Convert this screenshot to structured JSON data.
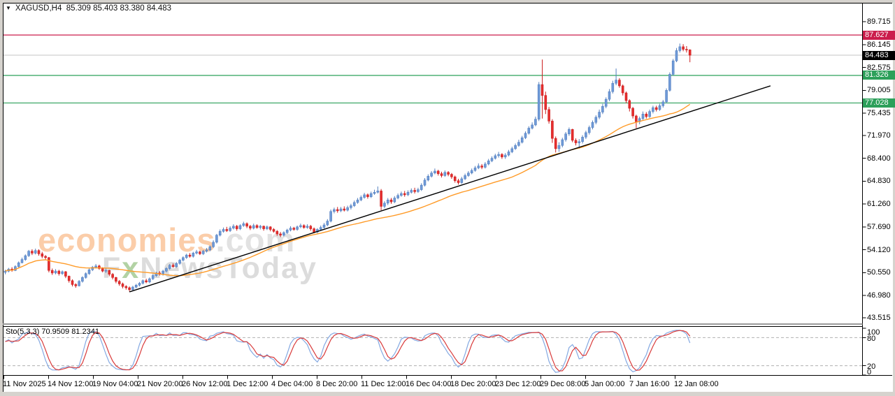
{
  "title": {
    "dropdown_icon": "▼",
    "symbol": "XAGUSD,H4",
    "ohlc_text": "85.309 85.403 83.380 84.483"
  },
  "watermark": {
    "brand": "economies",
    "brand_suffix": ".com",
    "sub_first": "F",
    "sub_x": "x",
    "sub_rest": "NewsToday"
  },
  "indicator_panel": {
    "label": "Sto(5,3,3)",
    "values": "70.9509 81.2341"
  },
  "colors": {
    "up_fill": "#6f9ad8",
    "up_stroke": "#5580bf",
    "down_fill": "#e62e2e",
    "down_stroke": "#cc1f1f",
    "ma": "#ff9b28",
    "trendline": "#000000",
    "resistance": "#cb1d4c",
    "support": "#2ca05a",
    "current_price_line": "#c4c4c4",
    "current_price_tag": "#000000",
    "sto_k": "#84a9e2",
    "sto_d": "#d93a3a",
    "sto_level_dash": "#b0b0b0",
    "frame": "#000000",
    "splitter": "#9b9b9b"
  },
  "chart_data": {
    "type": "candlestick",
    "symbol": "XAGUSD",
    "timeframe": "H4",
    "current_ohlc": {
      "open": 85.309,
      "high": 85.403,
      "low": 83.38,
      "close": 84.483
    },
    "ylim_visible": [
      42.3,
      90.7
    ],
    "y_ticks": [
      {
        "label": "89.715",
        "value": 89.715
      },
      {
        "label": "86.145",
        "value": 86.145
      },
      {
        "label": "82.575",
        "value": 82.575
      },
      {
        "label": "79.005",
        "value": 79.005
      },
      {
        "label": "75.435",
        "value": 75.435
      },
      {
        "label": "71.970",
        "value": 71.97
      },
      {
        "label": "68.400",
        "value": 68.4
      },
      {
        "label": "64.830",
        "value": 64.83
      },
      {
        "label": "61.260",
        "value": 61.26
      },
      {
        "label": "57.690",
        "value": 57.69
      },
      {
        "label": "54.120",
        "value": 54.12
      },
      {
        "label": "50.550",
        "value": 50.55
      },
      {
        "label": "46.980",
        "value": 46.98
      },
      {
        "label": "43.515",
        "value": 43.515
      }
    ],
    "x_labels": [
      "11 Nov 2025",
      "14 Nov 12:00",
      "19 Nov 04:00",
      "21 Nov 20:00",
      "26 Nov 12:00",
      "1 Dec 12:00",
      "4 Dec 04:00",
      "8 Dec 20:00",
      "11 Dec 12:00",
      "16 Dec 04:00",
      "18 Dec 20:00",
      "23 Dec 12:00",
      "29 Dec 08:00",
      "5 Jan 00:00",
      "7 Jan 16:00",
      "12 Jan 08:00"
    ],
    "hlines": [
      {
        "label": "87.627",
        "price": 87.627,
        "color": "#cb1d4c",
        "tag_bg": "#cb1d4c",
        "kind": "resistance"
      },
      {
        "label": "84.483",
        "price": 84.483,
        "color": "#c4c4c4",
        "tag_bg": "#000000",
        "kind": "current-price"
      },
      {
        "label": "81.326",
        "price": 81.326,
        "color": "#2ca05a",
        "tag_bg": "#2ca05a",
        "kind": "support"
      },
      {
        "label": "77.028",
        "price": 77.028,
        "color": "#2ca05a",
        "tag_bg": "#2ca05a",
        "kind": "support"
      }
    ],
    "trendline": {
      "bar1": 37,
      "price1": 47.55,
      "bar2": 228,
      "price2": 79.7
    },
    "ma": {
      "period": 40
    },
    "stochastic": {
      "k_period": 5,
      "slowing": 3,
      "d_period": 3,
      "levels": [
        80,
        20
      ],
      "axis_ticks": [
        "100",
        "80",
        "20",
        "0"
      ],
      "current_k": 70.9509,
      "current_d": 81.2341
    },
    "candles": [
      [
        50.6,
        51.0,
        50.3,
        50.8
      ],
      [
        50.8,
        51.3,
        50.6,
        51.1
      ],
      [
        51.1,
        51.4,
        50.7,
        50.9
      ],
      [
        50.9,
        51.7,
        50.8,
        51.5
      ],
      [
        51.5,
        52.3,
        51.3,
        52.1
      ],
      [
        52.1,
        52.9,
        52.0,
        52.6
      ],
      [
        52.6,
        53.4,
        52.4,
        53.2
      ],
      [
        53.2,
        54.1,
        53.0,
        53.9
      ],
      [
        53.9,
        54.2,
        53.3,
        53.6
      ],
      [
        53.6,
        54.3,
        53.4,
        54.0
      ],
      [
        54.0,
        54.2,
        53.2,
        53.5
      ],
      [
        53.5,
        53.8,
        52.8,
        53.1
      ],
      [
        53.1,
        53.3,
        52.6,
        52.9
      ],
      [
        52.9,
        53.0,
        50.6,
        50.9
      ],
      [
        50.9,
        51.2,
        50.2,
        50.5
      ],
      [
        50.5,
        51.1,
        50.3,
        50.8
      ],
      [
        50.8,
        51.0,
        50.1,
        50.4
      ],
      [
        50.4,
        50.9,
        50.2,
        50.7
      ],
      [
        50.7,
        50.8,
        49.7,
        50.0
      ],
      [
        50.0,
        50.1,
        49.0,
        49.3
      ],
      [
        49.3,
        49.5,
        48.4,
        48.7
      ],
      [
        48.7,
        48.9,
        48.2,
        48.5
      ],
      [
        48.5,
        49.4,
        48.4,
        49.2
      ],
      [
        49.2,
        50.0,
        49.0,
        49.8
      ],
      [
        49.8,
        50.6,
        49.6,
        50.4
      ],
      [
        50.4,
        51.2,
        50.2,
        51.0
      ],
      [
        51.0,
        51.6,
        50.8,
        51.4
      ],
      [
        51.4,
        51.9,
        51.2,
        51.6
      ],
      [
        51.6,
        51.8,
        51.0,
        51.2
      ],
      [
        51.2,
        51.4,
        50.6,
        50.8
      ],
      [
        50.8,
        51.2,
        50.5,
        50.9
      ],
      [
        50.9,
        51.0,
        50.0,
        50.3
      ],
      [
        50.3,
        50.5,
        49.5,
        49.8
      ],
      [
        49.8,
        49.9,
        48.9,
        49.2
      ],
      [
        49.2,
        49.4,
        48.5,
        48.8
      ],
      [
        48.8,
        49.0,
        48.1,
        48.4
      ],
      [
        48.4,
        48.6,
        47.9,
        48.2
      ],
      [
        48.2,
        48.4,
        47.6,
        47.9
      ],
      [
        47.9,
        48.5,
        47.7,
        48.3
      ],
      [
        48.3,
        48.8,
        48.1,
        48.6
      ],
      [
        48.6,
        49.1,
        48.4,
        48.9
      ],
      [
        48.9,
        49.5,
        48.7,
        49.3
      ],
      [
        49.3,
        49.6,
        48.9,
        49.1
      ],
      [
        49.1,
        49.8,
        48.9,
        49.6
      ],
      [
        49.6,
        50.3,
        49.4,
        50.1
      ],
      [
        50.1,
        50.7,
        49.9,
        50.5
      ],
      [
        50.5,
        50.8,
        50.1,
        50.3
      ],
      [
        50.3,
        51.0,
        50.1,
        50.8
      ],
      [
        50.8,
        51.4,
        50.6,
        51.2
      ],
      [
        51.2,
        51.9,
        51.0,
        51.7
      ],
      [
        51.7,
        52.0,
        51.3,
        51.5
      ],
      [
        51.5,
        52.2,
        51.3,
        52.0
      ],
      [
        52.0,
        52.7,
        51.8,
        52.5
      ],
      [
        52.5,
        53.1,
        52.3,
        52.9
      ],
      [
        52.9,
        53.5,
        52.7,
        53.3
      ],
      [
        53.3,
        53.6,
        52.9,
        53.1
      ],
      [
        53.1,
        53.8,
        52.9,
        53.6
      ],
      [
        53.6,
        54.1,
        53.4,
        53.8
      ],
      [
        53.8,
        54.0,
        53.3,
        53.5
      ],
      [
        53.5,
        54.1,
        53.3,
        53.9
      ],
      [
        53.9,
        54.4,
        53.7,
        54.1
      ],
      [
        54.1,
        54.8,
        53.9,
        54.6
      ],
      [
        54.6,
        55.6,
        54.4,
        55.3
      ],
      [
        55.3,
        56.6,
        55.1,
        56.4
      ],
      [
        56.4,
        57.3,
        56.2,
        57.0
      ],
      [
        57.0,
        57.6,
        56.8,
        57.3
      ],
      [
        57.3,
        57.7,
        56.9,
        57.1
      ],
      [
        57.1,
        57.8,
        56.9,
        57.5
      ],
      [
        57.5,
        58.1,
        57.3,
        57.8
      ],
      [
        57.8,
        58.0,
        57.1,
        57.4
      ],
      [
        57.4,
        58.1,
        57.2,
        57.9
      ],
      [
        57.9,
        58.5,
        57.7,
        58.2
      ],
      [
        58.2,
        58.4,
        57.5,
        57.8
      ],
      [
        57.8,
        58.0,
        57.2,
        57.5
      ],
      [
        57.5,
        58.2,
        57.3,
        57.9
      ],
      [
        57.9,
        58.1,
        57.4,
        57.6
      ],
      [
        57.6,
        58.0,
        57.3,
        57.8
      ],
      [
        57.8,
        57.9,
        57.1,
        57.4
      ],
      [
        57.4,
        57.9,
        57.2,
        57.7
      ],
      [
        57.7,
        57.8,
        57.0,
        57.3
      ],
      [
        57.3,
        57.5,
        56.8,
        57.0
      ],
      [
        57.0,
        57.2,
        56.3,
        56.6
      ],
      [
        56.6,
        56.9,
        56.1,
        56.4
      ],
      [
        56.4,
        57.0,
        56.2,
        56.8
      ],
      [
        56.8,
        57.4,
        56.6,
        57.2
      ],
      [
        57.2,
        57.8,
        57.0,
        57.5
      ],
      [
        57.5,
        57.7,
        57.1,
        57.3
      ],
      [
        57.3,
        57.9,
        57.1,
        57.7
      ],
      [
        57.7,
        58.2,
        57.5,
        57.9
      ],
      [
        57.9,
        58.1,
        57.4,
        57.6
      ],
      [
        57.6,
        58.1,
        57.4,
        57.8
      ],
      [
        57.8,
        58.0,
        57.1,
        57.4
      ],
      [
        57.4,
        57.6,
        56.7,
        56.9
      ],
      [
        56.9,
        57.5,
        56.7,
        57.3
      ],
      [
        57.3,
        57.9,
        57.1,
        57.6
      ],
      [
        57.6,
        58.3,
        57.4,
        58.0
      ],
      [
        58.0,
        58.9,
        57.8,
        58.6
      ],
      [
        58.6,
        60.4,
        58.4,
        60.1
      ],
      [
        60.1,
        60.7,
        59.8,
        60.4
      ],
      [
        60.4,
        60.8,
        59.9,
        60.2
      ],
      [
        60.2,
        60.8,
        60.0,
        60.5
      ],
      [
        60.5,
        60.9,
        60.1,
        60.3
      ],
      [
        60.3,
        61.0,
        60.1,
        60.7
      ],
      [
        60.7,
        61.3,
        60.4,
        61.0
      ],
      [
        61.0,
        61.8,
        60.8,
        61.5
      ],
      [
        61.5,
        62.2,
        61.3,
        61.9
      ],
      [
        61.9,
        62.6,
        61.7,
        62.3
      ],
      [
        62.3,
        63.0,
        62.1,
        62.7
      ],
      [
        62.7,
        62.9,
        62.1,
        62.4
      ],
      [
        62.4,
        63.2,
        62.2,
        62.9
      ],
      [
        62.9,
        63.5,
        62.7,
        63.1
      ],
      [
        63.1,
        64.0,
        62.9,
        63.3
      ],
      [
        63.3,
        63.6,
        60.3,
        60.9
      ],
      [
        60.9,
        61.7,
        60.6,
        61.4
      ],
      [
        61.4,
        62.2,
        61.1,
        61.9
      ],
      [
        61.9,
        62.2,
        61.3,
        61.6
      ],
      [
        61.6,
        62.5,
        61.4,
        62.2
      ],
      [
        62.2,
        62.9,
        62.0,
        62.6
      ],
      [
        62.6,
        63.2,
        62.4,
        62.9
      ],
      [
        62.9,
        63.3,
        62.4,
        62.7
      ],
      [
        62.7,
        63.4,
        62.5,
        63.1
      ],
      [
        63.1,
        63.7,
        62.9,
        63.4
      ],
      [
        63.4,
        63.8,
        62.9,
        63.2
      ],
      [
        63.2,
        63.8,
        63.0,
        63.5
      ],
      [
        63.5,
        64.5,
        63.3,
        64.2
      ],
      [
        64.2,
        65.3,
        64.0,
        65.0
      ],
      [
        65.0,
        65.9,
        64.8,
        65.6
      ],
      [
        65.6,
        66.4,
        65.4,
        66.1
      ],
      [
        66.1,
        66.8,
        65.9,
        66.4
      ],
      [
        66.4,
        66.6,
        65.7,
        66.0
      ],
      [
        66.0,
        66.3,
        65.4,
        65.7
      ],
      [
        65.7,
        66.5,
        65.5,
        66.2
      ],
      [
        66.2,
        66.4,
        65.6,
        65.9
      ],
      [
        65.9,
        66.1,
        65.2,
        65.5
      ],
      [
        65.5,
        65.7,
        64.6,
        64.9
      ],
      [
        64.9,
        65.2,
        64.3,
        64.6
      ],
      [
        64.6,
        65.5,
        64.4,
        65.2
      ],
      [
        65.2,
        66.0,
        65.0,
        65.7
      ],
      [
        65.7,
        66.4,
        65.5,
        66.1
      ],
      [
        66.1,
        66.8,
        65.9,
        66.5
      ],
      [
        66.5,
        67.2,
        66.3,
        66.9
      ],
      [
        66.9,
        67.6,
        66.7,
        67.2
      ],
      [
        67.2,
        67.5,
        66.7,
        67.0
      ],
      [
        67.0,
        67.8,
        66.8,
        67.5
      ],
      [
        67.5,
        68.3,
        67.3,
        68.0
      ],
      [
        68.0,
        68.7,
        67.8,
        68.4
      ],
      [
        68.4,
        69.1,
        68.2,
        68.8
      ],
      [
        68.8,
        69.4,
        68.5,
        69.0
      ],
      [
        69.0,
        69.2,
        68.3,
        68.6
      ],
      [
        68.6,
        69.2,
        68.3,
        68.9
      ],
      [
        68.9,
        69.7,
        68.7,
        69.4
      ],
      [
        69.4,
        70.2,
        69.2,
        69.9
      ],
      [
        69.9,
        70.7,
        69.7,
        70.4
      ],
      [
        70.4,
        71.3,
        70.2,
        70.9
      ],
      [
        70.9,
        71.9,
        70.7,
        71.6
      ],
      [
        71.6,
        72.6,
        71.4,
        72.3
      ],
      [
        72.3,
        73.4,
        72.1,
        73.1
      ],
      [
        73.1,
        74.0,
        72.9,
        73.6
      ],
      [
        73.6,
        74.9,
        73.4,
        74.5
      ],
      [
        74.5,
        80.3,
        74.2,
        79.9
      ],
      [
        79.9,
        83.8,
        74.6,
        78.2
      ],
      [
        78.2,
        78.8,
        75.3,
        76.0
      ],
      [
        76.0,
        76.4,
        73.8,
        74.2
      ],
      [
        74.2,
        74.5,
        70.8,
        71.5
      ],
      [
        71.5,
        71.8,
        69.3,
        69.9
      ],
      [
        69.9,
        70.9,
        69.4,
        70.4
      ],
      [
        70.4,
        71.6,
        70.1,
        71.3
      ],
      [
        71.3,
        72.5,
        71.0,
        72.2
      ],
      [
        72.2,
        73.2,
        71.9,
        72.9
      ],
      [
        72.9,
        73.0,
        70.9,
        71.2
      ],
      [
        71.2,
        71.5,
        70.4,
        70.8
      ],
      [
        70.8,
        71.4,
        69.9,
        71.0
      ],
      [
        71.0,
        72.0,
        70.7,
        71.7
      ],
      [
        71.7,
        72.7,
        71.4,
        72.4
      ],
      [
        72.4,
        73.5,
        72.1,
        73.2
      ],
      [
        73.2,
        74.3,
        72.9,
        74.0
      ],
      [
        74.0,
        75.1,
        73.7,
        74.8
      ],
      [
        74.8,
        76.0,
        74.5,
        75.6
      ],
      [
        75.6,
        76.9,
        75.3,
        76.5
      ],
      [
        76.5,
        77.9,
        76.2,
        77.6
      ],
      [
        77.6,
        79.2,
        77.3,
        78.8
      ],
      [
        78.8,
        80.5,
        78.5,
        80.1
      ],
      [
        80.1,
        82.4,
        79.8,
        80.6
      ],
      [
        80.6,
        80.9,
        79.4,
        79.7
      ],
      [
        79.7,
        79.9,
        78.2,
        78.6
      ],
      [
        78.6,
        78.8,
        77.0,
        77.4
      ],
      [
        77.4,
        77.6,
        75.7,
        76.2
      ],
      [
        76.2,
        76.4,
        74.6,
        75.0
      ],
      [
        75.0,
        75.2,
        73.1,
        74.1
      ],
      [
        74.1,
        74.9,
        73.7,
        74.6
      ],
      [
        74.6,
        75.7,
        74.3,
        75.3
      ],
      [
        75.3,
        75.6,
        74.6,
        74.9
      ],
      [
        74.9,
        76.0,
        74.7,
        75.7
      ],
      [
        75.7,
        76.6,
        75.4,
        76.3
      ],
      [
        76.3,
        76.6,
        75.7,
        76.0
      ],
      [
        76.0,
        76.9,
        75.8,
        76.6
      ],
      [
        76.6,
        77.5,
        76.3,
        77.2
      ],
      [
        77.2,
        79.3,
        77.0,
        79.0
      ],
      [
        79.0,
        81.8,
        78.8,
        81.5
      ],
      [
        81.5,
        83.9,
        81.3,
        83.6
      ],
      [
        83.6,
        85.6,
        83.4,
        85.2
      ],
      [
        85.2,
        86.3,
        84.9,
        85.8
      ],
      [
        85.8,
        86.2,
        85.1,
        85.4
      ],
      [
        85.4,
        85.9,
        84.9,
        85.3
      ],
      [
        85.31,
        85.4,
        83.38,
        84.48
      ]
    ]
  }
}
